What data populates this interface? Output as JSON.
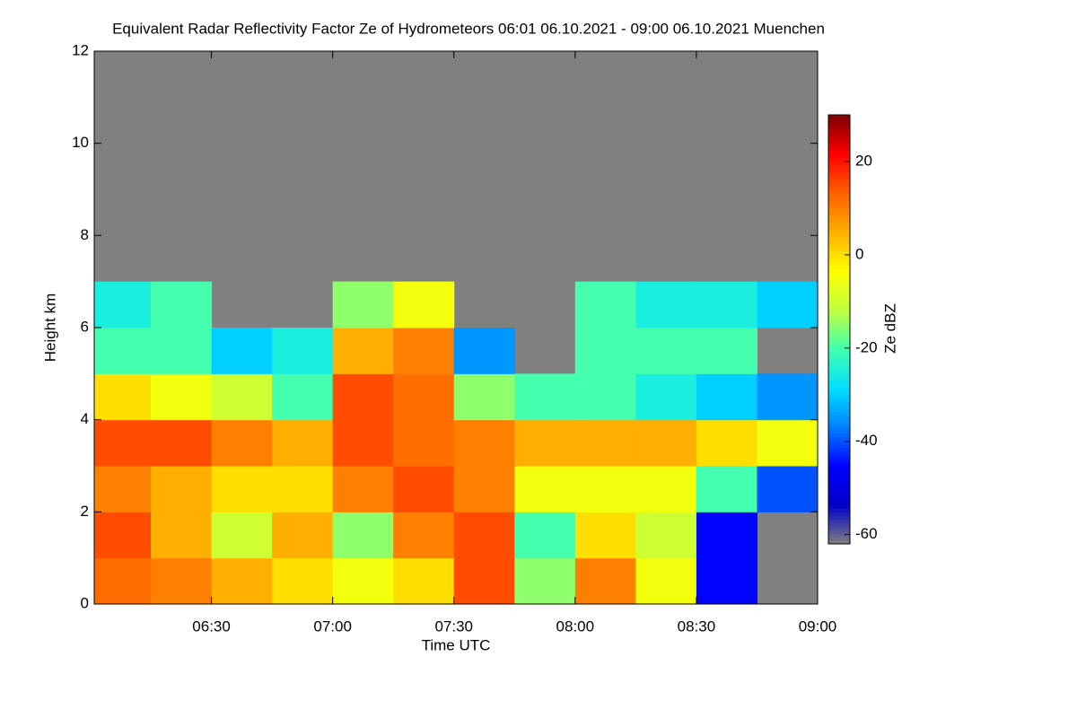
{
  "chart_data": {
    "type": "heatmap",
    "title": "Equivalent Radar Reflectivity Factor Ze of Hydrometeors   06:01 06.10.2021 - 09:00 06.10.2021 Muenchen",
    "xlabel": "Time UTC",
    "ylabel": "Height km",
    "colorbar_label": "Ze dBZ",
    "xlim": [
      6.0167,
      9.0
    ],
    "xticks": [
      {
        "value": 6.5,
        "label": "06:30"
      },
      {
        "value": 7.0,
        "label": "07:00"
      },
      {
        "value": 7.5,
        "label": "07:30"
      },
      {
        "value": 8.0,
        "label": "08:00"
      },
      {
        "value": 8.5,
        "label": "08:30"
      },
      {
        "value": 9.0,
        "label": "09:00"
      }
    ],
    "ylim": [
      0,
      12
    ],
    "yticks": [
      0,
      2,
      4,
      6,
      8,
      10,
      12
    ],
    "xbins": [
      6.0167,
      6.25,
      6.5,
      6.75,
      7.0,
      7.25,
      7.5,
      7.75,
      8.0,
      8.25,
      8.5,
      8.75,
      9.0
    ],
    "ybins": [
      0,
      1,
      2,
      3,
      4,
      5,
      6,
      7,
      8,
      9,
      10,
      11,
      12
    ],
    "z": [
      [
        12,
        10,
        5,
        0,
        -5,
        0,
        15,
        -15,
        10,
        -5,
        -45,
        null
      ],
      [
        15,
        5,
        -10,
        5,
        -15,
        10,
        15,
        -20,
        0,
        -10,
        -45,
        null
      ],
      [
        10,
        5,
        0,
        0,
        10,
        15,
        10,
        -5,
        -5,
        -5,
        -20,
        -40
      ],
      [
        15,
        15,
        10,
        5,
        15,
        12,
        10,
        5,
        5,
        5,
        0,
        -5
      ],
      [
        0,
        -5,
        -10,
        -20,
        15,
        12,
        -15,
        -20,
        -20,
        -25,
        -30,
        -35
      ],
      [
        -20,
        -20,
        -30,
        -25,
        5,
        10,
        -35,
        null,
        -20,
        -20,
        -20,
        null
      ],
      [
        -25,
        -20,
        null,
        null,
        -15,
        -5,
        null,
        null,
        -20,
        -25,
        -25,
        -30
      ],
      [
        null,
        null,
        null,
        null,
        null,
        null,
        null,
        null,
        null,
        null,
        null,
        null
      ],
      [
        null,
        null,
        null,
        null,
        null,
        null,
        null,
        null,
        null,
        null,
        null,
        null
      ],
      [
        null,
        null,
        null,
        null,
        null,
        null,
        null,
        null,
        null,
        null,
        null,
        null
      ],
      [
        null,
        null,
        null,
        null,
        null,
        null,
        null,
        null,
        null,
        null,
        null,
        null
      ],
      [
        null,
        null,
        null,
        null,
        null,
        null,
        null,
        null,
        null,
        null,
        null,
        null
      ]
    ],
    "zlim": [
      -62,
      30
    ],
    "zticks": [
      -60,
      -40,
      -20,
      0,
      20
    ],
    "background_color": "#808080",
    "colors": [
      "#808080",
      "#0000c8",
      "#0000ff",
      "#0080ff",
      "#00e0ff",
      "#40ffb0",
      "#c0ff40",
      "#ffff00",
      "#ffb000",
      "#ff6000",
      "#ff0000",
      "#800000"
    ]
  }
}
